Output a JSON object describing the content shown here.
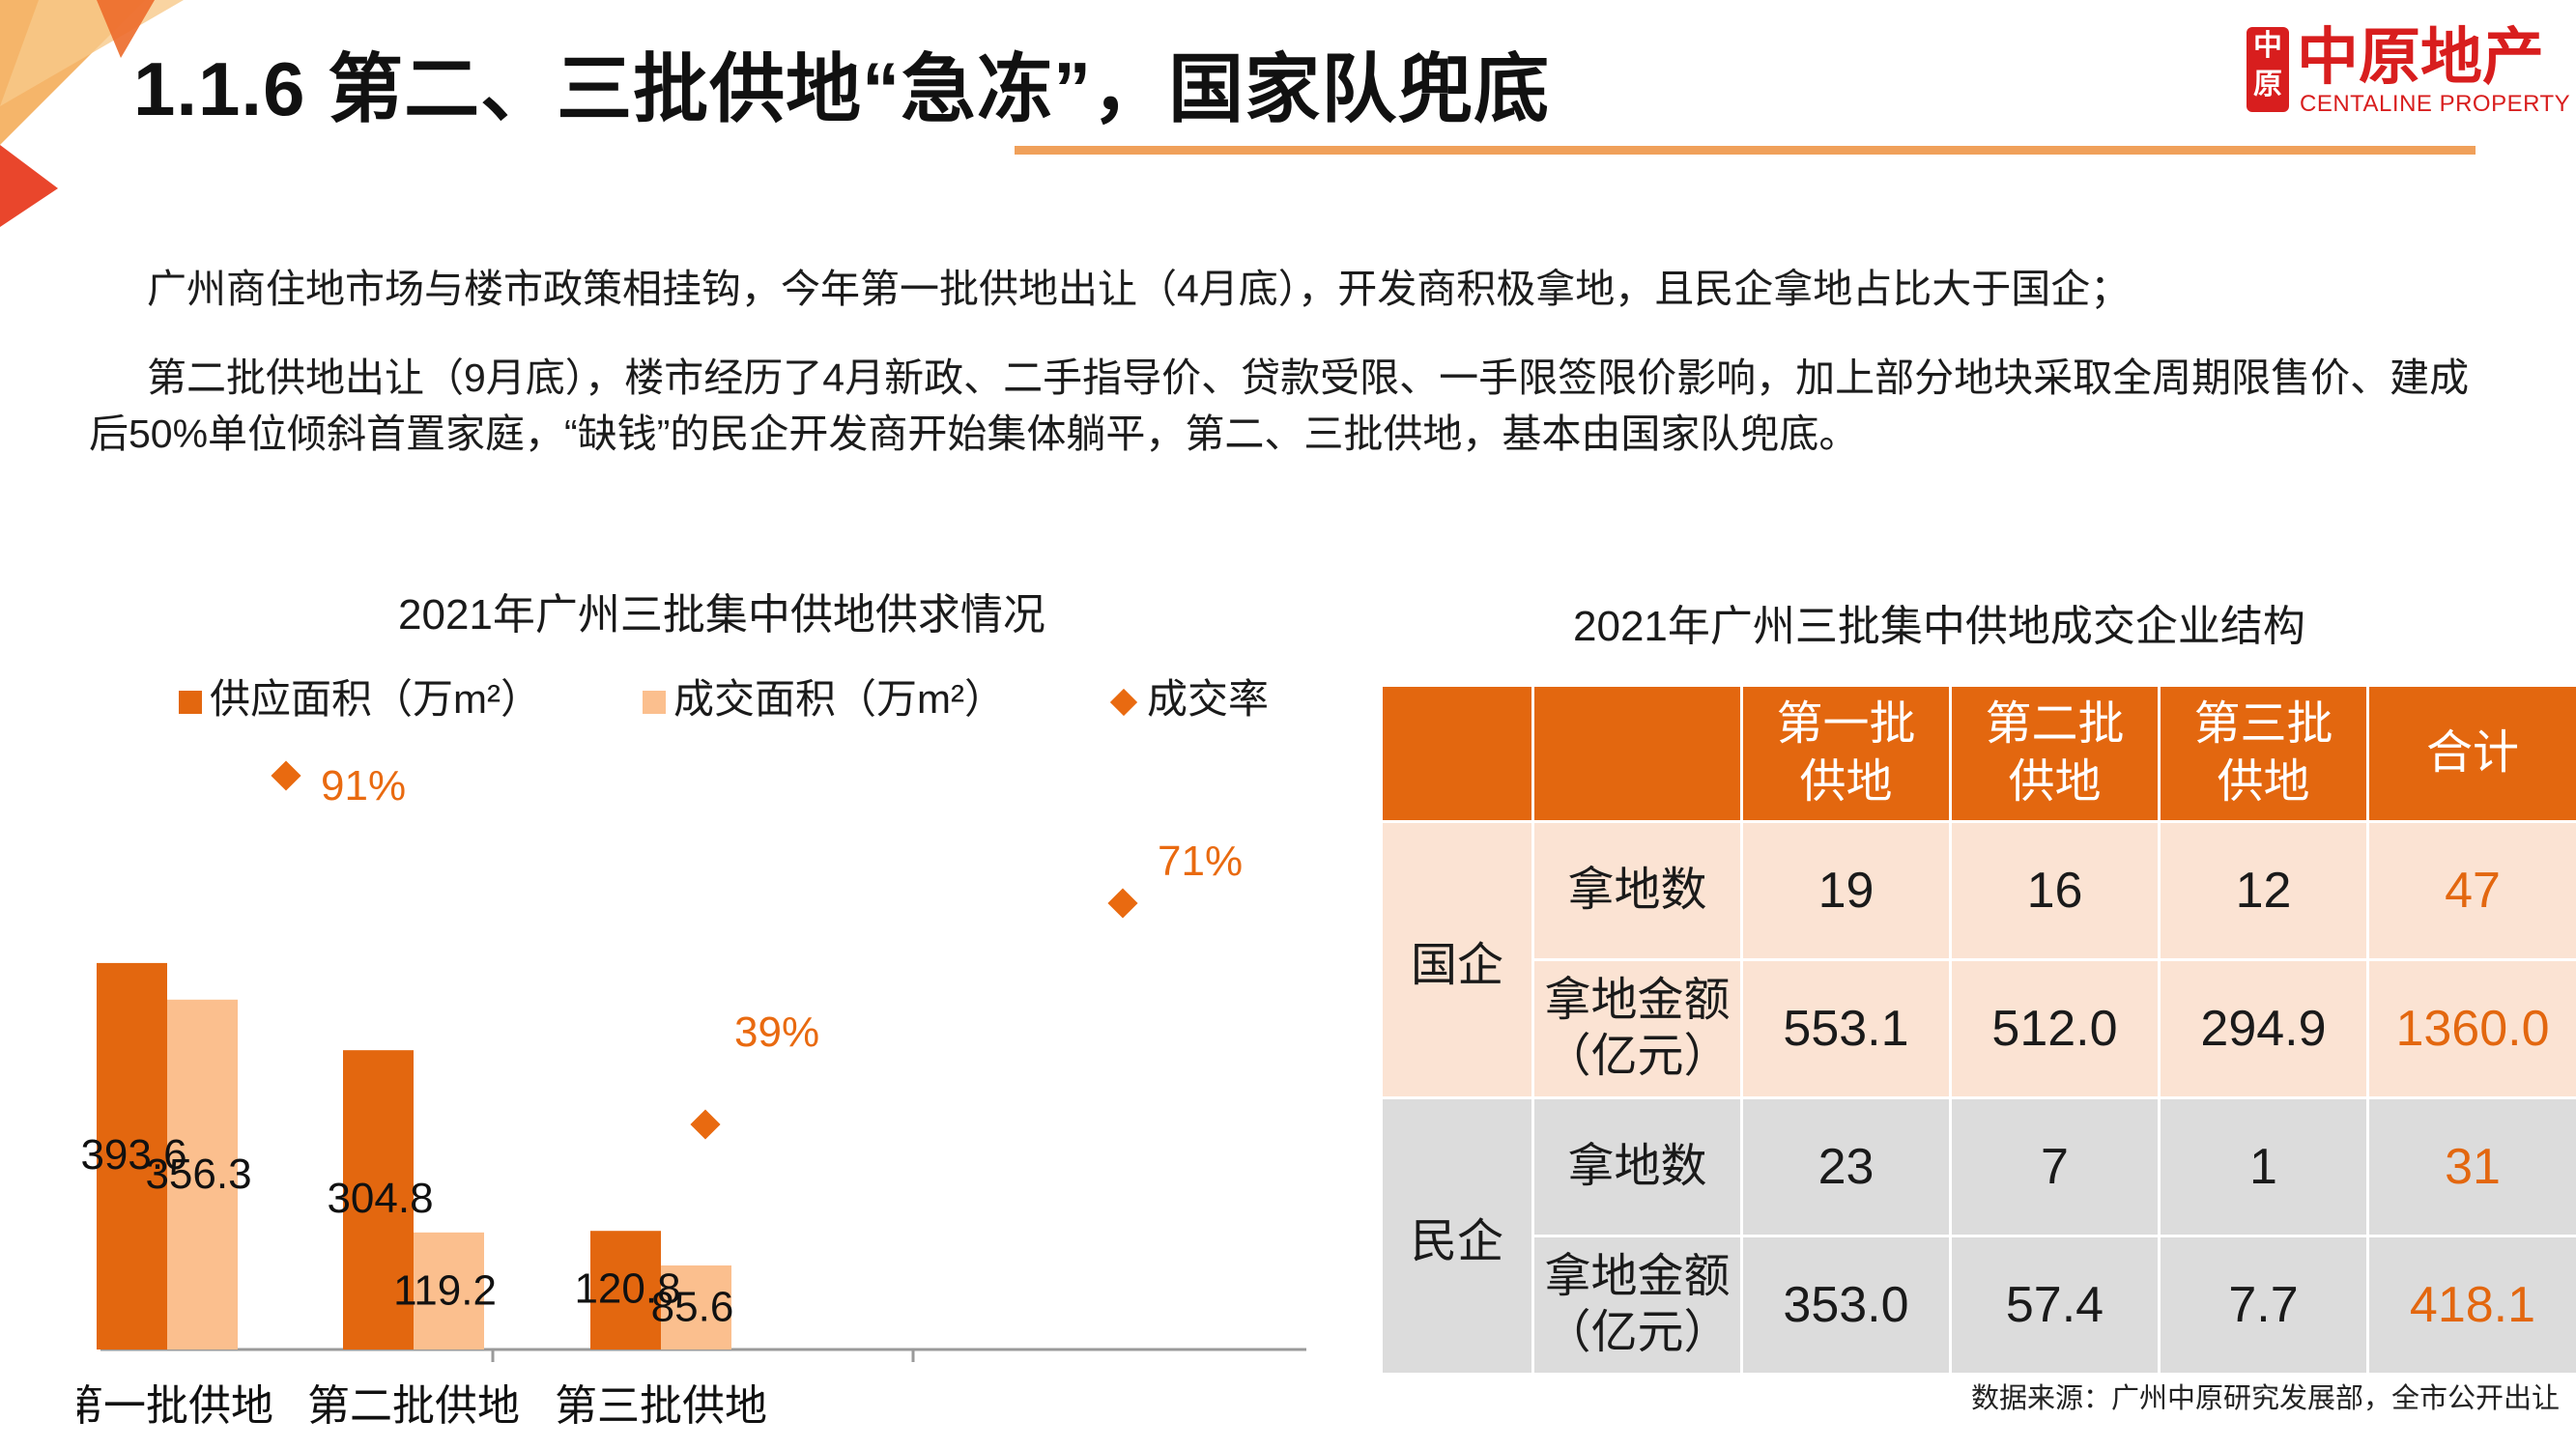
{
  "header": {
    "title": "1.1.6 第二、三批供地“急冻”，国家队兜底",
    "logo_cn": "中原地产",
    "logo_en": "CENTALINE PROPERTY",
    "logo_mark": "中原",
    "colors": {
      "accent": "#e3670f",
      "rule": "#f0a05a",
      "brand": "#d81e1e",
      "light": "#fbbf8e"
    }
  },
  "body": {
    "para1": "广州商住地市场与楼市政策相挂钩，今年第一批供地出让（4月底），开发商积极拿地，且民企拿地占比大于国企；",
    "para2": "第二批供地出让（9月底），楼市经历了4月新政、二手指导价、贷款受限、一手限签限价影响，加上部分地块采取全周期限售价、建成后50%单位倾斜首置家庭，“缺钱”的民企开发商开始集体躺平，第二、三批供地，基本由国家队兜底。"
  },
  "chart_data": {
    "type": "bar",
    "title": "2021年广州三批集中供地供求情况",
    "categories": [
      "第一批供地",
      "第二批供地",
      "第三批供地"
    ],
    "series": [
      {
        "name": "供应面积（万m²）",
        "values": [
          393.6,
          304.8,
          120.8
        ],
        "labels": [
          "393.6",
          "304.8",
          "120.8"
        ],
        "color": "#e3670f"
      },
      {
        "name": "成交面积（万m²）",
        "values": [
          356.3,
          119.2,
          85.6
        ],
        "labels": [
          "356.3",
          "119.2",
          "85.6"
        ],
        "color": "#fbbf8e"
      },
      {
        "name": "成交率",
        "values": [
          91,
          39,
          71
        ],
        "labels": [
          "91%",
          "39%",
          "71%"
        ],
        "color": "#e96a10"
      }
    ],
    "ylim": [
      0,
      450
    ],
    "rate_ylim": [
      0,
      100
    ],
    "grid": false,
    "legend": "top"
  },
  "table": {
    "title": "2021年广州三批集中供地成交企业结构",
    "columns": [
      "",
      "",
      "第一批\n供地",
      "第二批\n供地",
      "第三批\n供地",
      "合计"
    ],
    "groups": [
      {
        "name": "国企",
        "rows": [
          {
            "label": "拿地数",
            "values": [
              "19",
              "16",
              "12"
            ],
            "total": "47"
          },
          {
            "label": "拿地金额\n（亿元）",
            "values": [
              "553.1",
              "512.0",
              "294.9"
            ],
            "total": "1360.0"
          }
        ]
      },
      {
        "name": "民企",
        "rows": [
          {
            "label": "拿地数",
            "values": [
              "23",
              "7",
              "1"
            ],
            "total": "31"
          },
          {
            "label": "拿地金额\n（亿元）",
            "values": [
              "353.0",
              "57.4",
              "7.7"
            ],
            "total": "418.1"
          }
        ]
      }
    ]
  },
  "source": "数据来源：广州中原研究发展部，全市公开出让"
}
